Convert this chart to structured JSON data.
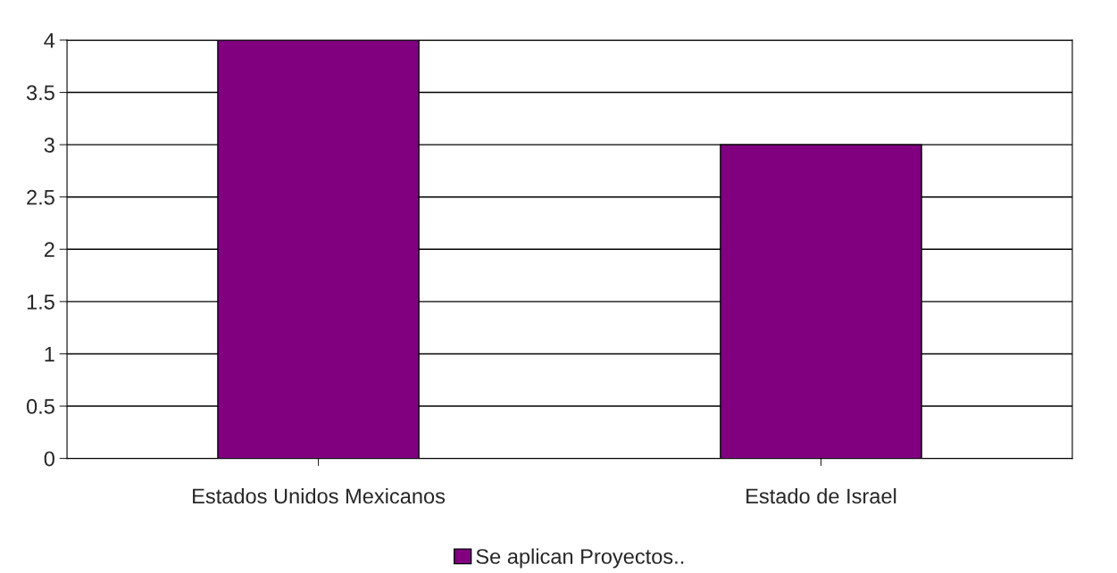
{
  "chart_data": {
    "type": "bar",
    "categories": [
      "Estados Unidos Mexicanos",
      "Estado de Israel"
    ],
    "series": [
      {
        "name": "Se aplican Proyectos..",
        "color": "#800080",
        "values": [
          4,
          3
        ]
      }
    ],
    "ylim": [
      0,
      4
    ],
    "yticks": [
      0,
      0.5,
      1,
      1.5,
      2,
      2.5,
      3,
      3.5,
      4
    ],
    "grid": "y",
    "legend": "bottom"
  }
}
